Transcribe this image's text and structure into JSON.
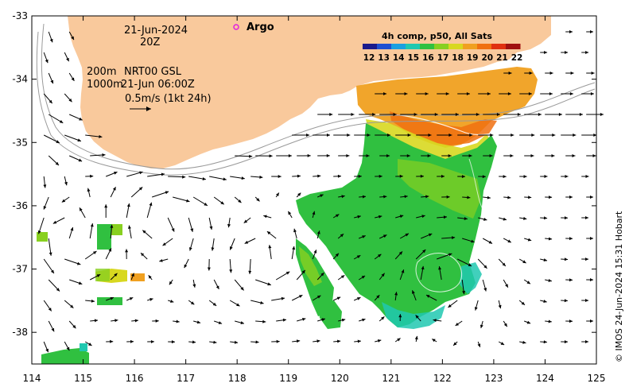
{
  "map": {
    "x_ticks": [
      "114",
      "115",
      "116",
      "117",
      "118",
      "119",
      "120",
      "121",
      "122",
      "123",
      "124",
      "125"
    ],
    "y_ticks": [
      "-33",
      "-34",
      "-35",
      "-36",
      "-37",
      "-38"
    ],
    "lon_range": [
      114,
      125
    ],
    "lat_range": [
      -38.5,
      -33
    ]
  },
  "info": {
    "date": "21-Jun-2024",
    "hour": "20Z",
    "depth_200": "200m",
    "depth_1000": "1000m",
    "source": "NRT00 GSL",
    "source_time": "21-Jun 06:00Z",
    "scale_label": "0.5m/s (1kt 24h)"
  },
  "legend": {
    "argo_label": "Argo",
    "argo_color": "#e020e0"
  },
  "colorbar": {
    "title": "4h comp, p50, All Sats",
    "labels": [
      "12",
      "13",
      "14",
      "15",
      "16",
      "17",
      "18",
      "19",
      "20",
      "21",
      "22"
    ],
    "colors": [
      "#1a1a8c",
      "#1f4fd1",
      "#1aa0e0",
      "#20c8b0",
      "#30c040",
      "#88d020",
      "#d8d820",
      "#f0a020",
      "#f07010",
      "#e03010",
      "#a01010"
    ]
  },
  "land_color": "#f9c99c",
  "credit": "© IMOS 24-Jun-2024 15:31 Hobart"
}
